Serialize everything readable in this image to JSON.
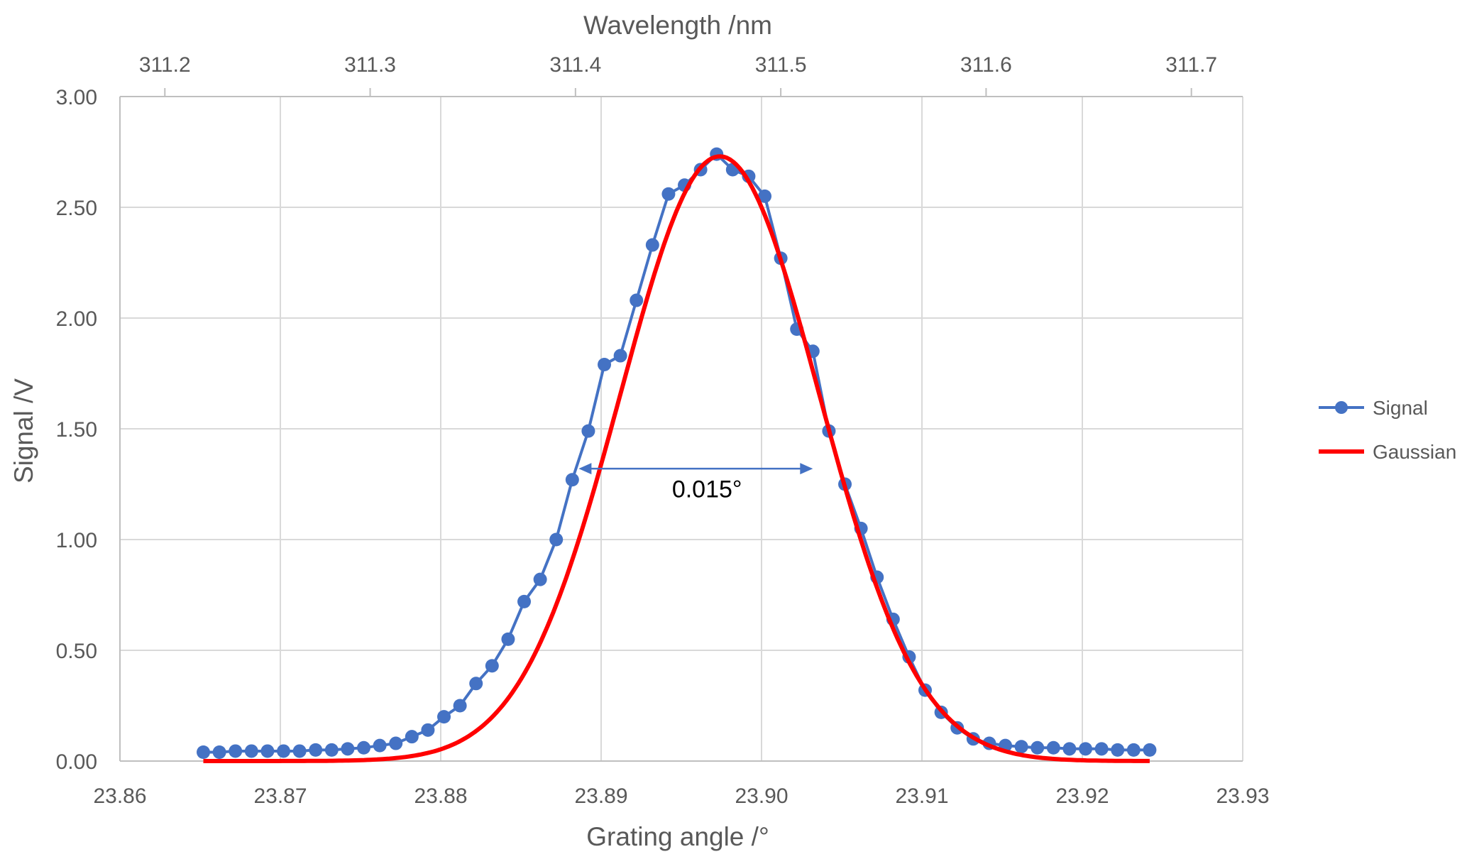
{
  "chart_data": {
    "type": "line",
    "title": "",
    "xlabel": "Grating angle /°",
    "ylabel": "Signal /V",
    "x2label": "Wavelength /nm",
    "xlim": [
      23.86,
      23.93
    ],
    "ylim": [
      0,
      3
    ],
    "x_ticks": [
      "23.86",
      "23.87",
      "23.88",
      "23.89",
      "23.90",
      "23.91",
      "23.92",
      "23.93"
    ],
    "y_ticks": [
      "0.00",
      "0.50",
      "1.00",
      "1.50",
      "2.00",
      "2.50",
      "3.00"
    ],
    "x2_ticks": [
      {
        "label": "311.2",
        "at": 23.8628
      },
      {
        "label": "311.3",
        "at": 23.8756
      },
      {
        "label": "311.4",
        "at": 23.8884
      },
      {
        "label": "311.5",
        "at": 23.9012
      },
      {
        "label": "311.6",
        "at": 23.914
      },
      {
        "label": "311.7",
        "at": 23.9268
      }
    ],
    "grid": true,
    "legend": "right",
    "series": [
      {
        "name": "Signal",
        "color": "#4472c4",
        "marker": "circle",
        "x": [
          23.8652,
          23.8662,
          23.8672,
          23.8682,
          23.8692,
          23.8702,
          23.8712,
          23.8722,
          23.8732,
          23.8742,
          23.8752,
          23.8762,
          23.8772,
          23.8782,
          23.8792,
          23.8802,
          23.8812,
          23.8822,
          23.8832,
          23.8842,
          23.8852,
          23.8862,
          23.8872,
          23.8882,
          23.8892,
          23.8902,
          23.8912,
          23.8922,
          23.8932,
          23.8942,
          23.8952,
          23.8962,
          23.8972,
          23.8982,
          23.8992,
          23.9002,
          23.9012,
          23.9022,
          23.9032,
          23.9042,
          23.9052,
          23.9062,
          23.9072,
          23.9082,
          23.9092,
          23.9102,
          23.9112,
          23.9122,
          23.9132,
          23.9142,
          23.9152,
          23.9162,
          23.9172,
          23.9182,
          23.9192,
          23.9202,
          23.9212,
          23.9222,
          23.9232,
          23.9242
        ],
        "y": [
          0.04,
          0.04,
          0.045,
          0.045,
          0.045,
          0.045,
          0.045,
          0.05,
          0.05,
          0.055,
          0.06,
          0.07,
          0.08,
          0.11,
          0.14,
          0.2,
          0.25,
          0.35,
          0.43,
          0.55,
          0.72,
          0.82,
          1.0,
          1.27,
          1.49,
          1.79,
          1.83,
          2.08,
          2.33,
          2.56,
          2.6,
          2.67,
          2.74,
          2.67,
          2.64,
          2.55,
          2.27,
          1.95,
          1.85,
          1.49,
          1.25,
          1.05,
          0.83,
          0.64,
          0.47,
          0.32,
          0.22,
          0.15,
          0.1,
          0.08,
          0.07,
          0.065,
          0.06,
          0.06,
          0.055,
          0.055,
          0.055,
          0.05,
          0.05,
          0.05
        ]
      },
      {
        "name": "Gaussian",
        "color": "#ff0000",
        "model": "gaussian",
        "amplitude": 2.73,
        "center": 23.8974,
        "fwhm": 0.0146,
        "x_range": [
          23.8652,
          23.9242
        ]
      }
    ],
    "annotations": [
      {
        "type": "double-arrow",
        "text": "0.015°",
        "x_from": 23.8886,
        "x_to": 23.9032,
        "y": 1.32,
        "label_x": 23.8966,
        "label_y": 1.19,
        "color": "#4472c4"
      }
    ]
  }
}
